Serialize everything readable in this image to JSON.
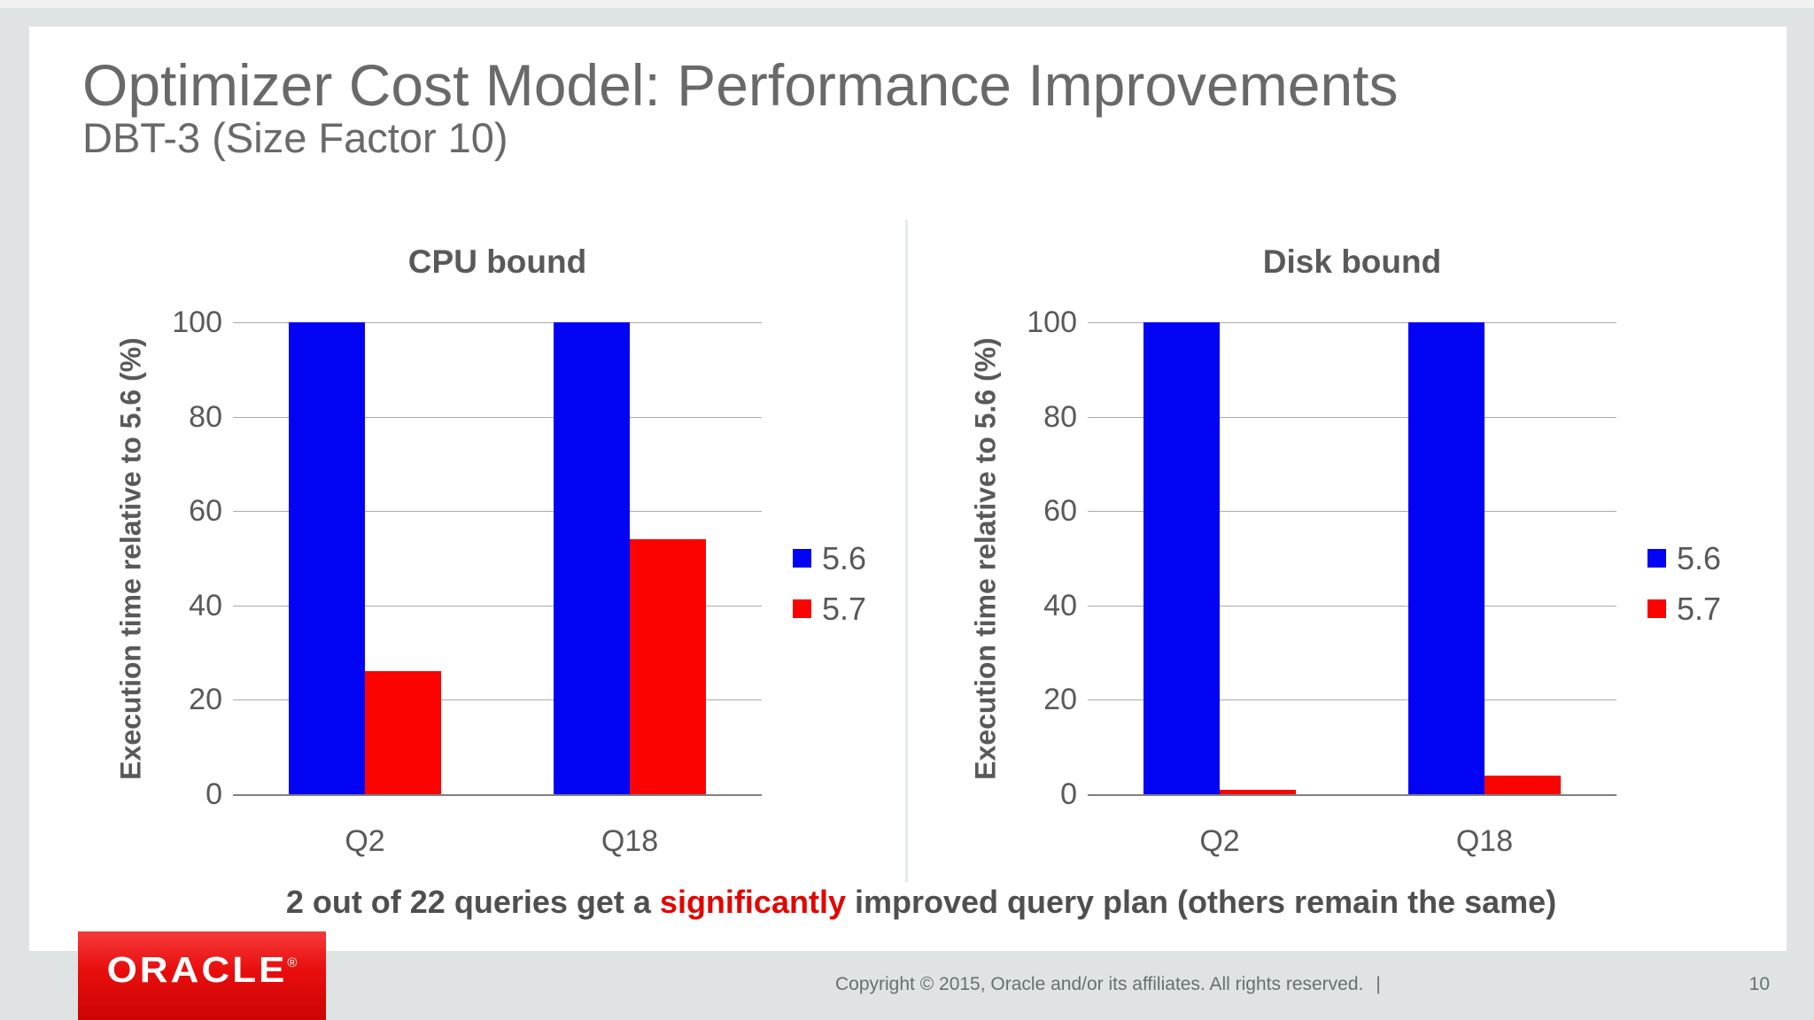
{
  "slide": {
    "title": "Optimizer Cost Model: Performance Improvements",
    "subtitle": "DBT-3 (Size Factor 10)",
    "statement": {
      "prefix": "2 out of 22 queries get a ",
      "highlight": "significantly",
      "suffix": " improved query plan (others remain the same)"
    }
  },
  "footer": {
    "copyright": "Copyright © 2015, Oracle and/or its affiliates. All rights reserved.",
    "separator": "|",
    "page_number": "10",
    "logo_text": "ORACLE",
    "logo_registered": "®"
  },
  "colors": {
    "series_56_blue": "#0404f5",
    "series_57_red": "#fb0300",
    "highlight_red": "#e10600",
    "gridline": "#aaaaaa",
    "axis_line": "#808080",
    "text_gray": "#595959"
  },
  "chart_data": [
    {
      "type": "bar",
      "title": "CPU bound",
      "categories": [
        "Q2",
        "Q18"
      ],
      "series": [
        {
          "name": "5.6",
          "color": "#0404f5",
          "values": [
            100,
            100
          ]
        },
        {
          "name": "5.7",
          "color": "#fb0300",
          "values": [
            26,
            54
          ]
        }
      ],
      "xlabel": "",
      "ylabel": "Execution time relative to 5.6 (%)",
      "yticks": [
        0,
        20,
        40,
        60,
        80,
        100
      ],
      "ylim": [
        0,
        100
      ],
      "grid": true,
      "legend_position": "right"
    },
    {
      "type": "bar",
      "title": "Disk bound",
      "categories": [
        "Q2",
        "Q18"
      ],
      "series": [
        {
          "name": "5.6",
          "color": "#0404f5",
          "values": [
            100,
            100
          ]
        },
        {
          "name": "5.7",
          "color": "#fb0300",
          "values": [
            1,
            4
          ]
        }
      ],
      "xlabel": "",
      "ylabel": "Execution time relative to 5.6 (%)",
      "yticks": [
        0,
        20,
        40,
        60,
        80,
        100
      ],
      "ylim": [
        0,
        100
      ],
      "grid": true,
      "legend_position": "right"
    }
  ]
}
